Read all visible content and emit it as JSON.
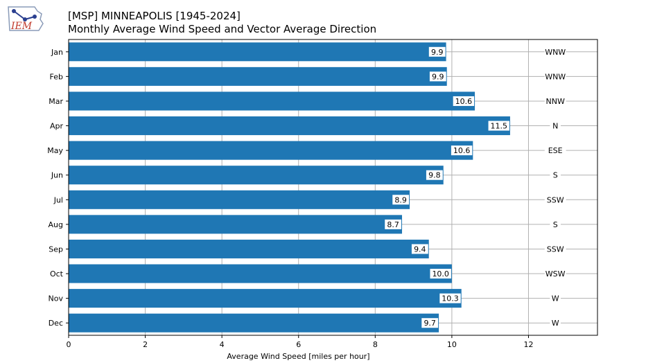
{
  "logo": {
    "text": "IEM"
  },
  "chart_data": {
    "type": "bar",
    "orientation": "horizontal",
    "title": "[MSP] MINNEAPOLIS [1945-2024]",
    "subtitle": "Monthly Average Wind Speed and Vector Average Direction",
    "xlabel": "Average Wind Speed [miles per hour]",
    "ylabel": "",
    "xlim": [
      0,
      13.8
    ],
    "xticks": [
      0,
      2,
      4,
      6,
      8,
      10,
      12
    ],
    "categories": [
      "Jan",
      "Feb",
      "Mar",
      "Apr",
      "May",
      "Jun",
      "Jul",
      "Aug",
      "Sep",
      "Oct",
      "Nov",
      "Dec"
    ],
    "values": [
      9.85,
      9.87,
      10.6,
      11.52,
      10.55,
      9.78,
      8.9,
      8.7,
      9.4,
      10.0,
      10.25,
      9.66
    ],
    "value_labels": [
      "9.9",
      "9.9",
      "10.6",
      "11.5",
      "10.6",
      "9.8",
      "8.9",
      "8.7",
      "9.4",
      "10.0",
      "10.3",
      "9.7"
    ],
    "directions": [
      "WNW",
      "WNW",
      "NNW",
      "N",
      "ESE",
      "S",
      "SSW",
      "S",
      "SSW",
      "WSW",
      "W",
      "W"
    ],
    "grid": true,
    "colors": {
      "bar": "#1f77b4",
      "grid": "#b0b0b0",
      "axis": "#000000"
    }
  }
}
